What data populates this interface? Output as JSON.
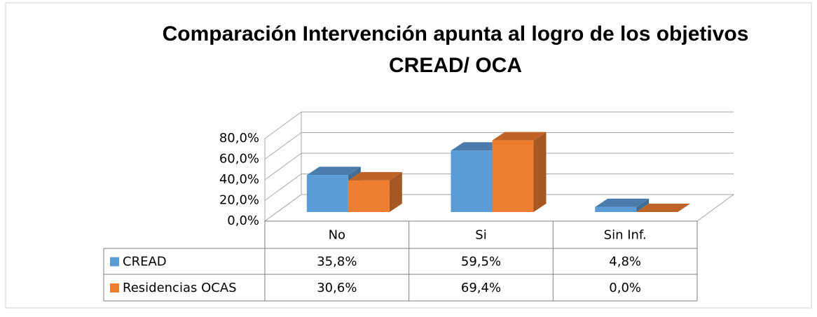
{
  "chart_data": {
    "type": "bar3d",
    "title": "Comparación Intervención apunta al logro de los objetivos CREAD/ OCA",
    "categories": [
      "No",
      "Si",
      "Sin Inf."
    ],
    "series": [
      {
        "name": "CREAD",
        "color": "#5b9bd5",
        "values": [
          35.8,
          59.5,
          4.8
        ],
        "value_labels": [
          "35,8%",
          "59,5%",
          "4,8%"
        ]
      },
      {
        "name": "Residencias OCAS",
        "color": "#ed7d31",
        "values": [
          30.6,
          69.4,
          0.0
        ],
        "value_labels": [
          "30,6%",
          "69,4%",
          "0,0%"
        ]
      }
    ],
    "ylim": [
      0,
      80
    ],
    "yticks": [
      {
        "value": 0,
        "label": "0,0%"
      },
      {
        "value": 20,
        "label": "20,0%"
      },
      {
        "value": 40,
        "label": "40,0%"
      },
      {
        "value": 60,
        "label": "60,0%"
      },
      {
        "value": 80,
        "label": "80,0%"
      }
    ],
    "grid": true,
    "data_table": true
  }
}
